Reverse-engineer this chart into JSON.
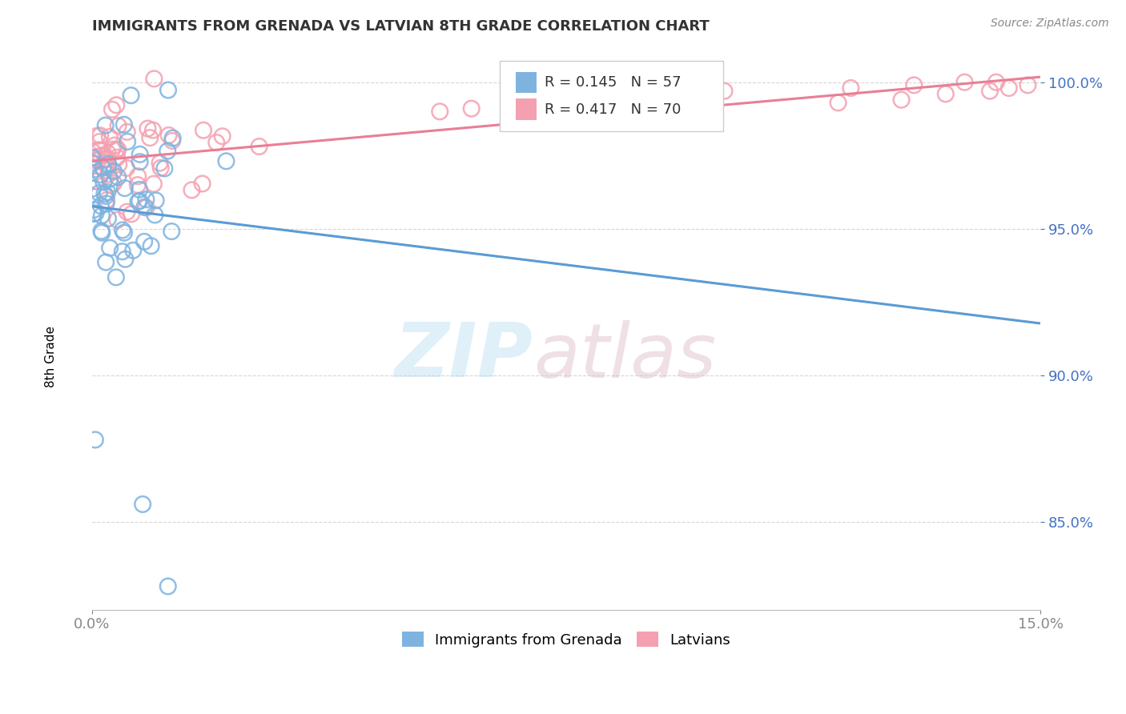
{
  "title": "IMMIGRANTS FROM GRENADA VS LATVIAN 8TH GRADE CORRELATION CHART",
  "source": "Source: ZipAtlas.com",
  "ylabel": "8th Grade",
  "xlim": [
    0.0,
    0.15
  ],
  "ylim": [
    0.82,
    1.012
  ],
  "xtick_positions": [
    0.0,
    0.15
  ],
  "xticklabels": [
    "0.0%",
    "15.0%"
  ],
  "ytick_positions": [
    0.85,
    0.9,
    0.95,
    1.0
  ],
  "yticklabels": [
    "85.0%",
    "90.0%",
    "95.0%",
    "100.0%"
  ],
  "legend_labels": [
    "Immigrants from Grenada",
    "Latvians"
  ],
  "R_grenada": 0.145,
  "N_grenada": 57,
  "R_latvian": 0.417,
  "N_latvian": 70,
  "color_grenada": "#7EB3E0",
  "color_latvian": "#F4A0B0",
  "trendline_grenada": "#5B9BD5",
  "trendline_latvian": "#E87F96",
  "background_color": "#FFFFFF",
  "ytick_color": "#4472C4"
}
